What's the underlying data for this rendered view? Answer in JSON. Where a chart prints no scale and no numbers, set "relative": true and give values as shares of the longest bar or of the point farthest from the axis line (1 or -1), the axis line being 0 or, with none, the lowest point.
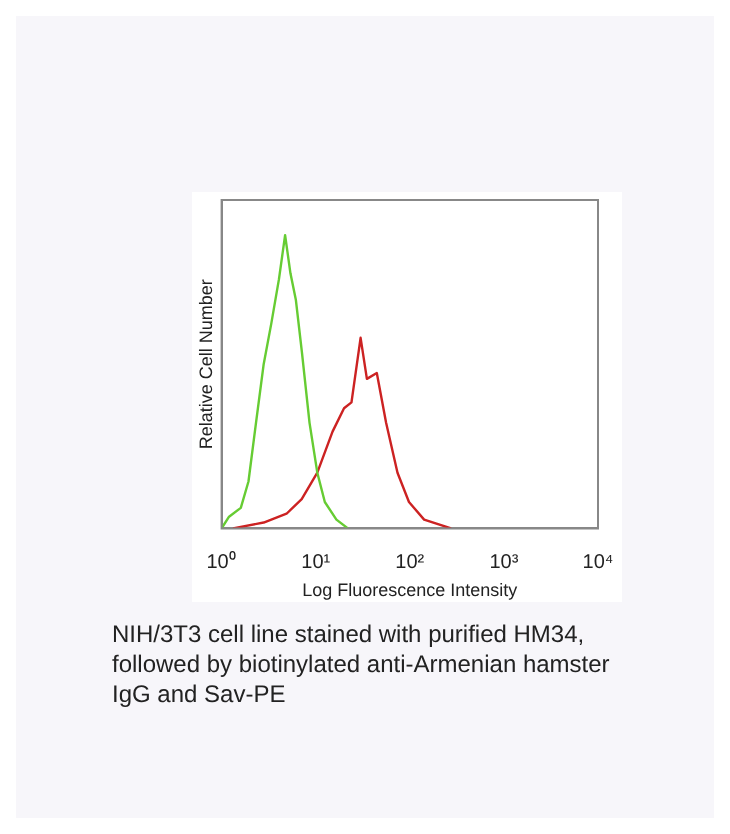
{
  "chart_data": {
    "type": "line",
    "relative": true,
    "log": "x",
    "xlabel": "Log Fluorescence Intensity",
    "ylabel": "Relative Cell Number",
    "xlim": [
      1,
      10000
    ],
    "xticks": [
      {
        "value": 1,
        "label": "10⁰"
      },
      {
        "value": 10,
        "label": "10¹"
      },
      {
        "value": 100,
        "label": "10²"
      },
      {
        "value": 1000,
        "label": "10³"
      },
      {
        "value": 10000,
        "label": "10⁴"
      }
    ],
    "grid": false,
    "legend": false,
    "marker": "none",
    "line_style": "solid",
    "series": [
      {
        "color": "#66cc33",
        "x": [
          1,
          1.2,
          1.6,
          1.93,
          2.32,
          2.8,
          3.38,
          4.07,
          4.73,
          5.39,
          6.15,
          7.14,
          8.6,
          10.4,
          12.5,
          16.6,
          22
        ],
        "values": [
          0,
          0.04,
          0.07,
          0.16,
          0.36,
          0.56,
          0.7,
          0.85,
          1,
          0.87,
          0.78,
          0.6,
          0.36,
          0.19,
          0.09,
          0.03,
          0
        ]
      },
      {
        "color": "#cc2222",
        "x": [
          1.32,
          2.8,
          4.9,
          7.1,
          10.4,
          15.1,
          20,
          24,
          30,
          35,
          44.6,
          56,
          74,
          98,
          142,
          275
        ],
        "values": [
          0,
          0.02,
          0.05,
          0.1,
          0.19,
          0.33,
          0.41,
          0.43,
          0.65,
          0.51,
          0.53,
          0.36,
          0.19,
          0.09,
          0.03,
          0
        ]
      }
    ],
    "annotations": [
      "NIH/3T3 cell line stained with purified HM34, followed by biotinylated anti-Armenian hamster IgG and Sav-PE"
    ]
  }
}
